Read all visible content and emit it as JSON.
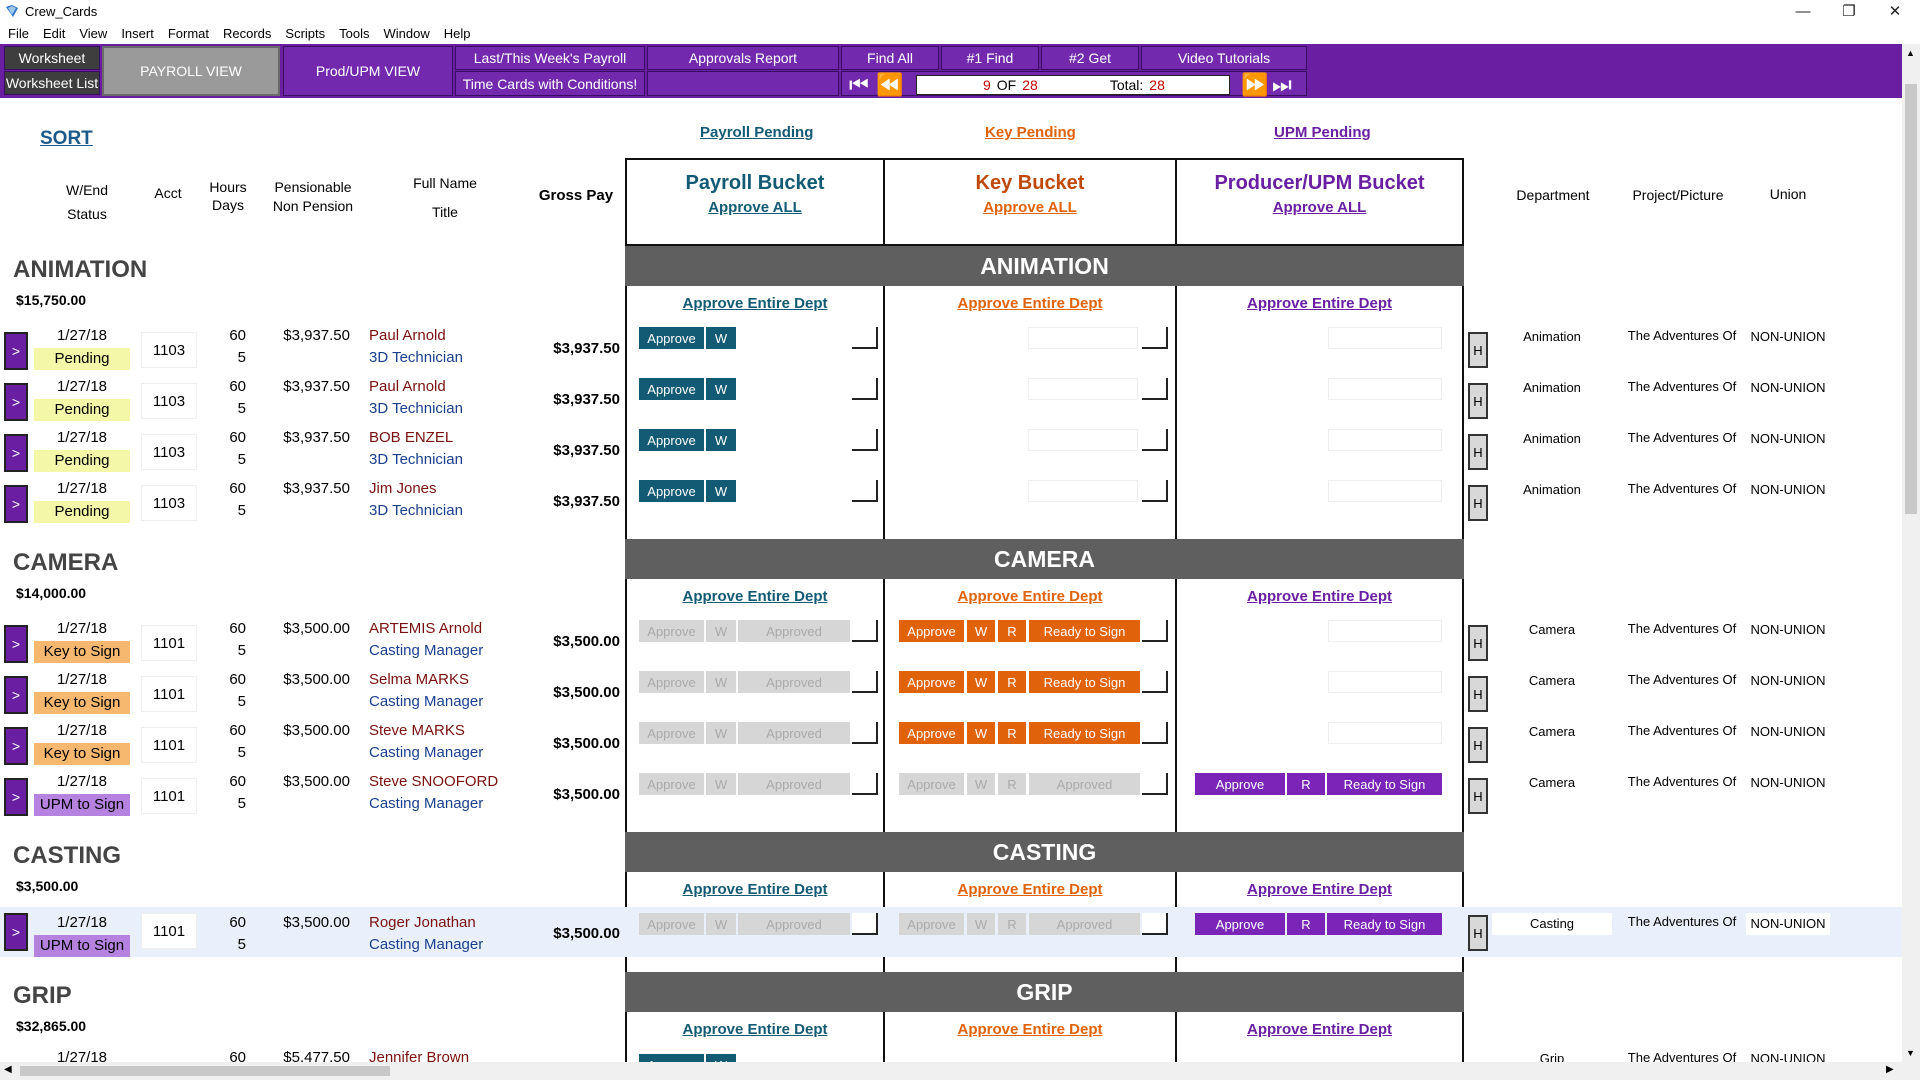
{
  "window": {
    "title": "Crew_Cards",
    "minimize": "—",
    "restore": "❐",
    "close": "✕"
  },
  "menu": [
    "File",
    "Edit",
    "View",
    "Insert",
    "Format",
    "Records",
    "Scripts",
    "Tools",
    "Window",
    "Help"
  ],
  "toolbar": {
    "worksheet": "Worksheet",
    "worksheet_list": "Worksheet List",
    "payroll_view": "PAYROLL VIEW",
    "prod_upm_view": "Prod/UPM VIEW",
    "last_this_week": "Last/This Week's Payroll",
    "time_cards_conditions": "Time Cards with Conditions!",
    "approvals_report": "Approvals Report",
    "find_all": "Find All",
    "find1": "#1 Find",
    "get2": "#2 Get",
    "video_tutorials": "Video Tutorials",
    "record_current": "9",
    "record_of": "OF",
    "record_count": "28",
    "total_label": "Total:",
    "total_value": "28"
  },
  "header": {
    "sort": "SORT",
    "payroll_pending": "Payroll Pending",
    "key_pending": "Key Pending",
    "upm_pending": "UPM Pending",
    "col_wend": "W/End",
    "col_status": "Status",
    "col_acct": "Acct",
    "col_hours": "Hours",
    "col_days": "Days",
    "col_pensionable": "Pensionable",
    "col_nonpension": "Non Pension",
    "col_fullname": "Full Name",
    "col_title": "Title",
    "col_gross": "Gross Pay",
    "col_department": "Department",
    "col_project": "Project/Picture",
    "col_union": "Union"
  },
  "buckets": {
    "payroll": {
      "title": "Payroll Bucket",
      "approve_all": "Approve ALL",
      "color": "#135a75"
    },
    "key": {
      "title": "Key Bucket",
      "approve_all": "Approve ALL",
      "color": "#c0480a"
    },
    "upm": {
      "title": "Producer/UPM Bucket",
      "approve_all": "Approve ALL",
      "color": "#6a1fa3"
    }
  },
  "labels": {
    "approve_entire_dept": "Approve Entire Dept",
    "approve": "Approve",
    "w": "W",
    "r": "R",
    "approved": "Approved",
    "ready_to_sign": "Ready to Sign",
    "h": "H",
    "go": ">"
  },
  "departments": [
    {
      "name": "ANIMATION",
      "total": "$15,750.00"
    },
    {
      "name": "CAMERA",
      "total": "$14,000.00"
    },
    {
      "name": "CASTING",
      "total": "$3,500.00"
    },
    {
      "name": "GRIP",
      "total": "$32,865.00"
    }
  ],
  "rows": [
    {
      "wend": "1/27/18",
      "status": "Pending",
      "acct": "1103",
      "hours": "60",
      "days": "5",
      "pens": "$3,937.50",
      "name": "Paul Arnold",
      "title": "3D Technician",
      "gross": "$3,937.50",
      "dept": "Animation",
      "proj": "The Adventures Of",
      "union": "NON-UNION"
    },
    {
      "wend": "1/27/18",
      "status": "Pending",
      "acct": "1103",
      "hours": "60",
      "days": "5",
      "pens": "$3,937.50",
      "name": "Paul Arnold",
      "title": "3D Technician",
      "gross": "$3,937.50",
      "dept": "Animation",
      "proj": "The Adventures Of",
      "union": "NON-UNION"
    },
    {
      "wend": "1/27/18",
      "status": "Pending",
      "acct": "1103",
      "hours": "60",
      "days": "5",
      "pens": "$3,937.50",
      "name": "BOB ENZEL",
      "title": "3D Technician",
      "gross": "$3,937.50",
      "dept": "Animation",
      "proj": "The Adventures Of",
      "union": "NON-UNION"
    },
    {
      "wend": "1/27/18",
      "status": "Pending",
      "acct": "1103",
      "hours": "60",
      "days": "5",
      "pens": "$3,937.50",
      "name": "Jim Jones",
      "title": "3D Technician",
      "gross": "$3,937.50",
      "dept": "Animation",
      "proj": "The Adventures Of",
      "union": "NON-UNION"
    },
    {
      "wend": "1/27/18",
      "status": "Key to Sign",
      "acct": "1101",
      "hours": "60",
      "days": "5",
      "pens": "$3,500.00",
      "name": "ARTEMIS Arnold",
      "title": "Casting Manager",
      "gross": "$3,500.00",
      "dept": "Camera",
      "proj": "The Adventures Of",
      "union": "NON-UNION"
    },
    {
      "wend": "1/27/18",
      "status": "Key to Sign",
      "acct": "1101",
      "hours": "60",
      "days": "5",
      "pens": "$3,500.00",
      "name": "Selma MARKS",
      "title": "Casting Manager",
      "gross": "$3,500.00",
      "dept": "Camera",
      "proj": "The Adventures Of",
      "union": "NON-UNION"
    },
    {
      "wend": "1/27/18",
      "status": "Key to Sign",
      "acct": "1101",
      "hours": "60",
      "days": "5",
      "pens": "$3,500.00",
      "name": "Steve MARKS",
      "title": "Casting Manager",
      "gross": "$3,500.00",
      "dept": "Camera",
      "proj": "The Adventures Of",
      "union": "NON-UNION"
    },
    {
      "wend": "1/27/18",
      "status": "UPM to Sign",
      "acct": "1101",
      "hours": "60",
      "days": "5",
      "pens": "$3,500.00",
      "name": "Steve SNOOFORD",
      "title": "Casting Manager",
      "gross": "$3,500.00",
      "dept": "Camera",
      "proj": "The Adventures Of",
      "union": "NON-UNION"
    },
    {
      "wend": "1/27/18",
      "status": "UPM to Sign",
      "acct": "1101",
      "hours": "60",
      "days": "5",
      "pens": "$3,500.00",
      "name": "Roger Jonathan",
      "title": "Casting Manager",
      "gross": "$3,500.00",
      "dept": "Casting",
      "proj": "The Adventures Of",
      "union": "NON-UNION"
    },
    {
      "wend": "1/27/18",
      "status": "",
      "acct": "",
      "hours": "60",
      "days": "",
      "pens": "$5,477.50",
      "name": "Jennifer Brown",
      "title": "",
      "gross": "",
      "dept": "Grip",
      "proj": "The Adventures Of",
      "union": "NON-UNION"
    }
  ],
  "colors": {
    "toolbar": "#6a1fa3",
    "pending": "#f4f7a8",
    "key_to_sign": "#f6b86e",
    "upm_to_sign": "#b682e0",
    "dept_bar": "#5f5f5f"
  }
}
